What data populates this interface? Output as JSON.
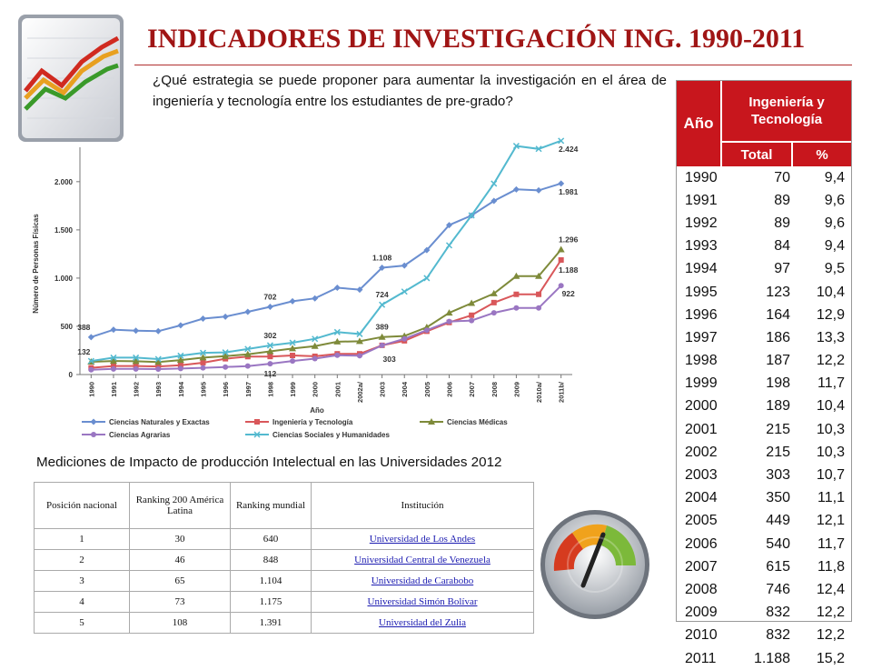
{
  "header": {
    "title": "INDICADORES DE INVESTIGACIÓN ING. 1990-2011",
    "question": "¿Qué estrategia se puede proponer para aumentar la investigación en el área de ingeniería y tecnología entre los estudiantes de pre-grado?"
  },
  "colors": {
    "title": "#a01515",
    "table_header": "#c8161d",
    "link": "#1a1ab0"
  },
  "chart_data": {
    "type": "line",
    "ylabel": "Número de Personas Físicas",
    "xlabel": "Año",
    "categories": [
      "1990",
      "1991",
      "1992",
      "1993",
      "1994",
      "1995",
      "1996",
      "1997",
      "1998",
      "1999",
      "2000",
      "2001",
      "2002a/",
      "2003",
      "2004",
      "2005",
      "2006",
      "2007",
      "2008",
      "2009",
      "2010a/",
      "2011b/"
    ],
    "ylim": [
      0,
      2300
    ],
    "yticks": [
      0,
      500,
      1000,
      1500,
      2000
    ],
    "ytick_labels": [
      "0",
      "500",
      "1.000",
      "1.500",
      "2.000"
    ],
    "grid": false,
    "legend_position": "bottom",
    "series": [
      {
        "name": "Ciencias Naturales y Exactas",
        "color": "#6a8ed0",
        "values": [
          388,
          465,
          455,
          450,
          510,
          580,
          600,
          650,
          702,
          760,
          790,
          900,
          880,
          1108,
          1130,
          1290,
          1550,
          1650,
          1800,
          1920,
          1910,
          1981
        ]
      },
      {
        "name": "Ingeniería y Tecnología",
        "color": "#d9575a",
        "values": [
          70,
          89,
          89,
          84,
          97,
          123,
          164,
          186,
          187,
          198,
          189,
          215,
          215,
          303,
          350,
          449,
          540,
          615,
          746,
          832,
          832,
          1188
        ]
      },
      {
        "name": "Ciencias Médicas",
        "color": "#7e8a3a",
        "values": [
          132,
          140,
          138,
          130,
          150,
          175,
          190,
          210,
          240,
          270,
          295,
          340,
          345,
          389,
          400,
          490,
          640,
          740,
          840,
          1020,
          1020,
          1296
        ]
      },
      {
        "name": "Ciencias Agrarias",
        "color": "#9a76c2",
        "values": [
          50,
          58,
          58,
          57,
          62,
          70,
          78,
          88,
          112,
          140,
          165,
          200,
          195,
          303,
          370,
          460,
          550,
          560,
          640,
          690,
          690,
          922
        ]
      },
      {
        "name": "Ciencias Sociales y Humanidades",
        "color": "#53b9cf",
        "values": [
          140,
          175,
          175,
          160,
          195,
          225,
          230,
          265,
          302,
          330,
          370,
          440,
          420,
          724,
          860,
          1000,
          1340,
          1650,
          1980,
          2370,
          2340,
          2424
        ]
      }
    ],
    "annotations": [
      {
        "series": 0,
        "index": 0,
        "text": "388"
      },
      {
        "series": 2,
        "index": 0,
        "text": "132"
      },
      {
        "series": 0,
        "index": 8,
        "text": "702"
      },
      {
        "series": 4,
        "index": 8,
        "text": "302"
      },
      {
        "series": 3,
        "index": 8,
        "text": "112"
      },
      {
        "series": 0,
        "index": 13,
        "text": "1.108"
      },
      {
        "series": 4,
        "index": 13,
        "text": "724"
      },
      {
        "series": 2,
        "index": 13,
        "text": "389"
      },
      {
        "series": 1,
        "index": 13,
        "text": "303"
      },
      {
        "series": 4,
        "index": 21,
        "text": "2.424"
      },
      {
        "series": 0,
        "index": 21,
        "text": "1.981"
      },
      {
        "series": 2,
        "index": 21,
        "text": "1.296"
      },
      {
        "series": 1,
        "index": 21,
        "text": "1.188"
      },
      {
        "series": 3,
        "index": 21,
        "text": "922"
      }
    ]
  },
  "year_table": {
    "col_year": "Año",
    "group_header": "Ingeniería y Tecnología",
    "col_total": "Total",
    "col_pct": "%",
    "rows": [
      {
        "year": "1990",
        "total": "70",
        "pct": "9,4"
      },
      {
        "year": "1991",
        "total": "89",
        "pct": "9,6"
      },
      {
        "year": "1992",
        "total": "89",
        "pct": "9,6"
      },
      {
        "year": "1993",
        "total": "84",
        "pct": "9,4"
      },
      {
        "year": "1994",
        "total": "97",
        "pct": "9,5"
      },
      {
        "year": "1995",
        "total": "123",
        "pct": "10,4"
      },
      {
        "year": "1996",
        "total": "164",
        "pct": "12,9"
      },
      {
        "year": "1997",
        "total": "186",
        "pct": "13,3"
      },
      {
        "year": "1998",
        "total": "187",
        "pct": "12,2"
      },
      {
        "year": "1999",
        "total": "198",
        "pct": "11,7"
      },
      {
        "year": "2000",
        "total": "189",
        "pct": "10,4"
      },
      {
        "year": "2001",
        "total": "215",
        "pct": "10,3"
      },
      {
        "year": "2002",
        "total": "215",
        "pct": "10,3"
      },
      {
        "year": "2003",
        "total": "303",
        "pct": "10,7"
      },
      {
        "year": "2004",
        "total": "350",
        "pct": "11,1"
      },
      {
        "year": "2005",
        "total": "449",
        "pct": "12,1"
      },
      {
        "year": "2006",
        "total": "540",
        "pct": "11,7"
      },
      {
        "year": "2007",
        "total": "615",
        "pct": "11,8"
      },
      {
        "year": "2008",
        "total": "746",
        "pct": "12,4"
      },
      {
        "year": "2009",
        "total": "832",
        "pct": "12,2"
      },
      {
        "year": "2010",
        "total": "832",
        "pct": "12,2"
      },
      {
        "year": "2011",
        "total": "1.188",
        "pct": "15,2"
      }
    ]
  },
  "ranking": {
    "caption": "Mediciones de Impacto de producción Intelectual en las Universidades 2012",
    "headers": [
      "Posición nacional",
      "Ranking 200 América Latina",
      "Ranking mundial",
      "Institución"
    ],
    "rows": [
      {
        "pos": "1",
        "latam": "30",
        "world": "640",
        "inst": "Universidad de Los Andes"
      },
      {
        "pos": "2",
        "latam": "46",
        "world": "848",
        "inst": "Universidad Central de Venezuela"
      },
      {
        "pos": "3",
        "latam": "65",
        "world": "1.104",
        "inst": "Universidad de Carabobo"
      },
      {
        "pos": "4",
        "latam": "73",
        "world": "1.175",
        "inst": "Universidad Simón Bolívar"
      },
      {
        "pos": "5",
        "latam": "108",
        "world": "1.391",
        "inst": "Universidad del Zulia"
      }
    ]
  },
  "icons": [
    "chart-logo-icon",
    "gauge-icon"
  ]
}
